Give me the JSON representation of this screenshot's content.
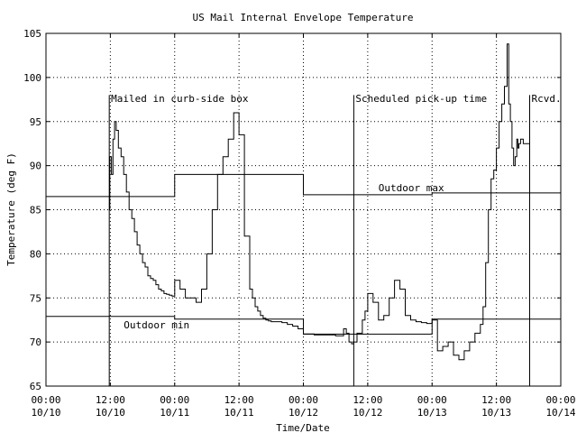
{
  "chart_data": {
    "type": "line",
    "title": "US Mail Internal Envelope Temperature",
    "xlabel": "Time/Date",
    "ylabel": "Temperature (deg F)",
    "xlim": [
      0,
      96
    ],
    "ylim": [
      65,
      105
    ],
    "grid": true,
    "y_ticks": [
      "65",
      "70",
      "75",
      "80",
      "85",
      "90",
      "95",
      "100",
      "105"
    ],
    "x_ticks": [
      {
        "x": 0,
        "time": "00:00",
        "date": "10/10"
      },
      {
        "x": 12,
        "time": "12:00",
        "date": "10/10"
      },
      {
        "x": 24,
        "time": "00:00",
        "date": "10/11"
      },
      {
        "x": 36,
        "time": "12:00",
        "date": "10/11"
      },
      {
        "x": 48,
        "time": "00:00",
        "date": "10/12"
      },
      {
        "x": 60,
        "time": "12:00",
        "date": "10/12"
      },
      {
        "x": 72,
        "time": "00:00",
        "date": "10/13"
      },
      {
        "x": 84,
        "time": "12:00",
        "date": "10/13"
      },
      {
        "x": 96,
        "time": "00:00",
        "date": "10/14"
      }
    ],
    "events": [
      {
        "x": 11.8,
        "label": "Mailed in curb-side box"
      },
      {
        "x": 57.4,
        "label": "Scheduled pick-up time"
      },
      {
        "x": 90.2,
        "label": "Rcvd."
      }
    ],
    "outdoor_max": {
      "label": "Outdoor max",
      "label_x": 62,
      "segments": [
        {
          "x0": 0,
          "x1": 24,
          "y": 86.5
        },
        {
          "x0": 24,
          "x1": 48,
          "y": 89
        },
        {
          "x0": 48,
          "x1": 72,
          "y": 86.7
        },
        {
          "x0": 72,
          "x1": 96,
          "y": 86.9
        }
      ]
    },
    "outdoor_min": {
      "label": "Outdoor min",
      "label_x": 14.5,
      "segments": [
        {
          "x0": 0,
          "x1": 24,
          "y": 72.9
        },
        {
          "x0": 24,
          "x1": 48,
          "y": 72.6
        },
        {
          "x0": 48,
          "x1": 72,
          "y": 70.9
        },
        {
          "x0": 72,
          "x1": 96,
          "y": 72.6
        }
      ]
    },
    "series": [
      {
        "x": [
          11.8,
          11.9,
          12.2,
          12.5,
          12.8,
          13.1,
          13.5,
          14.0,
          14.5,
          15.0,
          15.5,
          16.0,
          16.5,
          17.0,
          17.5,
          18.0,
          18.5,
          19.0,
          19.5,
          20.0,
          20.5,
          21.0,
          21.5,
          22.0,
          22.5,
          23.0,
          23.5,
          24.0,
          25.0,
          26.0,
          27.0,
          28.0,
          29.0,
          30.0,
          31.0,
          32.0,
          33.0,
          34.0,
          35.0,
          36.0,
          37.0,
          38.0,
          38.5,
          39.0,
          39.5,
          40.0,
          40.5,
          41.0,
          41.5,
          42.0,
          43.0,
          44.0,
          45.0,
          46.0,
          47.0,
          48.0,
          50.0,
          52.0,
          54.0,
          55.5,
          56.0,
          56.5,
          57.0,
          57.4,
          58.0,
          59.0,
          59.5,
          60.0,
          61.0,
          62.0,
          63.0,
          64.0,
          65.0,
          66.0,
          67.0,
          68.0,
          69.0,
          70.0,
          71.0,
          72.0,
          73.0,
          74.0,
          75.0,
          76.0,
          77.0,
          78.0,
          79.0,
          80.0,
          81.0,
          81.5,
          82.0,
          82.5,
          83.0,
          83.5,
          84.0,
          84.5,
          85.0,
          85.5,
          86.0,
          86.3,
          86.6,
          86.9,
          87.2,
          87.5,
          87.8,
          88.0,
          88.2,
          88.5,
          89.0,
          89.5,
          90.2
        ],
        "y": [
          85,
          91,
          89,
          93,
          95,
          94,
          92,
          91,
          89,
          87,
          85,
          84,
          82.5,
          81,
          80,
          79,
          78.5,
          77.5,
          77.2,
          77,
          76.5,
          76,
          75.8,
          75.5,
          75.4,
          75.3,
          75.2,
          77,
          76,
          75,
          75,
          74.5,
          76,
          80,
          85,
          89,
          91,
          93,
          96,
          93.5,
          82,
          76,
          75,
          74,
          73.5,
          73,
          72.7,
          72.5,
          72.4,
          72.3,
          72.3,
          72.2,
          72,
          71.8,
          71.5,
          70.9,
          70.8,
          70.8,
          70.7,
          71.5,
          71,
          70,
          69.8,
          70,
          71,
          72.5,
          73.5,
          75.5,
          74.5,
          72.5,
          73,
          75,
          77,
          76,
          73,
          72.5,
          72.3,
          72.2,
          72.1,
          72.5,
          69,
          69.5,
          70,
          68.5,
          68,
          69,
          70,
          71,
          72,
          74,
          79,
          85,
          88.5,
          89.5,
          92,
          95,
          97,
          99,
          103.8,
          97,
          95,
          92,
          90,
          91,
          93,
          92,
          92.5,
          93,
          92.5,
          92.5,
          92.3
        ]
      }
    ]
  }
}
